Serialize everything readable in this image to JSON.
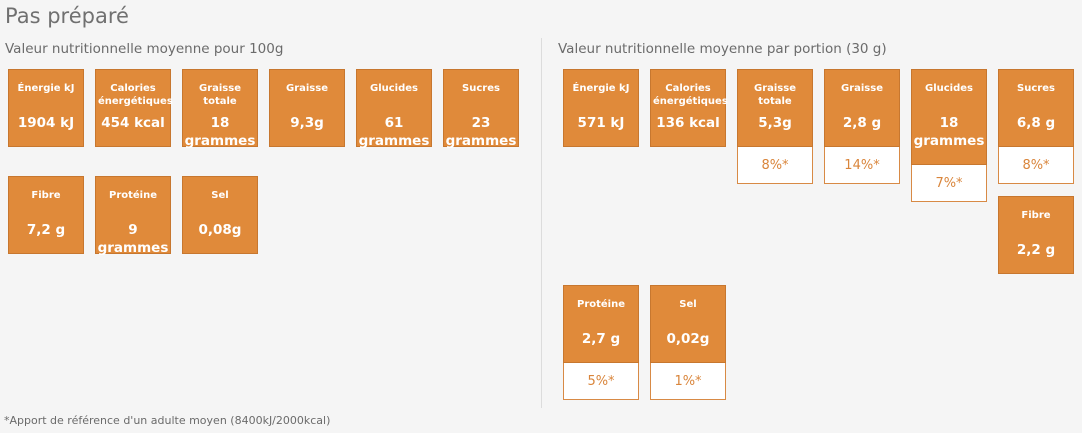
{
  "heading": "Pas préparé",
  "per100": {
    "title": "Valeur nutritionnelle moyenne pour 100g",
    "energie": {
      "label": "Énergie kJ",
      "value": "1904 kJ"
    },
    "calories": {
      "label": "Calories énergétiques",
      "value": "454 kcal"
    },
    "graisse_totale": {
      "label": "Graisse totale",
      "value": "18\ngrammes"
    },
    "graisse": {
      "label": "Graisse",
      "value": "9,3g"
    },
    "glucides": {
      "label": "Glucides",
      "value": "61\ngrammes"
    },
    "sucres": {
      "label": "Sucres",
      "value": "23\ngrammes"
    },
    "fibre": {
      "label": "Fibre",
      "value": "7,2 g"
    },
    "proteine": {
      "label": "Protéine",
      "value": "9 grammes"
    },
    "sel": {
      "label": "Sel",
      "value": "0,08g"
    }
  },
  "portion": {
    "title": "Valeur nutritionnelle moyenne par portion (30 g)",
    "energie": {
      "label": "Énergie kJ",
      "value": "571 kJ"
    },
    "calories": {
      "label": "Calories énergétiques",
      "value": "136 kcal"
    },
    "graisse_totale": {
      "label": "Graisse totale",
      "value": "5,3g",
      "pct": "8%*"
    },
    "graisse": {
      "label": "Graisse",
      "value": "2,8 g",
      "pct": "14%*"
    },
    "glucides": {
      "label": "Glucides",
      "value": "18\ngrammes",
      "pct": "7%*"
    },
    "sucres": {
      "label": "Sucres",
      "value": "6,8 g",
      "pct": "8%*"
    },
    "fibre": {
      "label": "Fibre",
      "value": "2,2 g"
    },
    "proteine": {
      "label": "Protéine",
      "value": "2,7 g",
      "pct": "5%*"
    },
    "sel": {
      "label": "Sel",
      "value": "0,02g",
      "pct": "1%*"
    }
  },
  "footnote": "*Apport de référence d'un adulte moyen (8400kJ/2000kcal)",
  "colors": {
    "tile": "#e08a3a",
    "tile_text": "#ffffff",
    "pct_text": "#d9853b",
    "background": "#f5f5f5"
  }
}
